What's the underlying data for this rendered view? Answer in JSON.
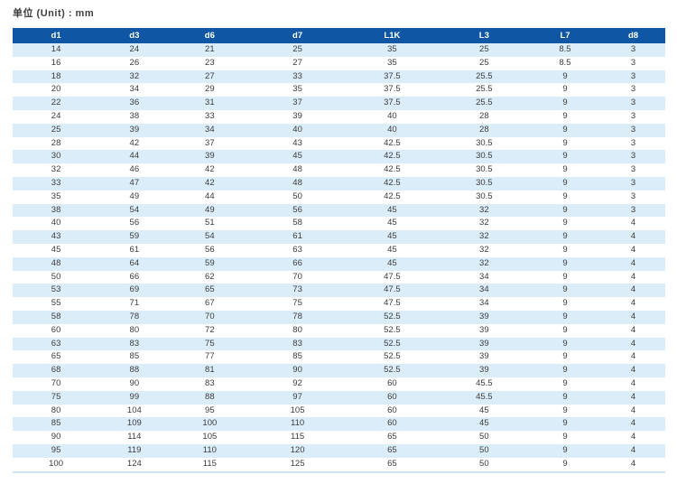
{
  "page": {
    "unit_label": "单位 (Unit) : mm"
  },
  "colors": {
    "header_bg": "#0f57a5",
    "header_text": "#ffffff",
    "row_alt_bg": "#dbedf9",
    "row_bg": "#ffffff",
    "body_text": "#3c3c3c",
    "table_bottom_line": "#cfe4f3"
  },
  "table": {
    "columns": [
      "d1",
      "d3",
      "d6",
      "d7",
      "L1K",
      "L3",
      "L7",
      "d8"
    ],
    "rows": [
      [
        14,
        24,
        21,
        25,
        35,
        25,
        8.5,
        3
      ],
      [
        16,
        26,
        23,
        27,
        35,
        25,
        8.5,
        3
      ],
      [
        18,
        32,
        27,
        33,
        37.5,
        25.5,
        9,
        3
      ],
      [
        20,
        34,
        29,
        35,
        37.5,
        25.5,
        9,
        3
      ],
      [
        22,
        36,
        31,
        37,
        37.5,
        25.5,
        9,
        3
      ],
      [
        24,
        38,
        33,
        39,
        40,
        28,
        9,
        3
      ],
      [
        25,
        39,
        34,
        40,
        40,
        28,
        9,
        3
      ],
      [
        28,
        42,
        37,
        43,
        42.5,
        30.5,
        9,
        3
      ],
      [
        30,
        44,
        39,
        45,
        42.5,
        30.5,
        9,
        3
      ],
      [
        32,
        46,
        42,
        48,
        42.5,
        30.5,
        9,
        3
      ],
      [
        33,
        47,
        42,
        48,
        42.5,
        30.5,
        9,
        3
      ],
      [
        35,
        49,
        44,
        50,
        42.5,
        30.5,
        9,
        3
      ],
      [
        38,
        54,
        49,
        56,
        45,
        32,
        9,
        3
      ],
      [
        40,
        56,
        51,
        58,
        45,
        32,
        9,
        4
      ],
      [
        43,
        59,
        54,
        61,
        45,
        32,
        9,
        4
      ],
      [
        45,
        61,
        56,
        63,
        45,
        32,
        9,
        4
      ],
      [
        48,
        64,
        59,
        66,
        45,
        32,
        9,
        4
      ],
      [
        50,
        66,
        62,
        70,
        47.5,
        34,
        9,
        4
      ],
      [
        53,
        69,
        65,
        73,
        47.5,
        34,
        9,
        4
      ],
      [
        55,
        71,
        67,
        75,
        47.5,
        34,
        9,
        4
      ],
      [
        58,
        78,
        70,
        78,
        52.5,
        39,
        9,
        4
      ],
      [
        60,
        80,
        72,
        80,
        52.5,
        39,
        9,
        4
      ],
      [
        63,
        83,
        75,
        83,
        52.5,
        39,
        9,
        4
      ],
      [
        65,
        85,
        77,
        85,
        52.5,
        39,
        9,
        4
      ],
      [
        68,
        88,
        81,
        90,
        52.5,
        39,
        9,
        4
      ],
      [
        70,
        90,
        83,
        92,
        60,
        45.5,
        9,
        4
      ],
      [
        75,
        99,
        88,
        97,
        60,
        45.5,
        9,
        4
      ],
      [
        80,
        104,
        95,
        105,
        60,
        45,
        9,
        4
      ],
      [
        85,
        109,
        100,
        110,
        60,
        45,
        9,
        4
      ],
      [
        90,
        114,
        105,
        115,
        65,
        50,
        9,
        4
      ],
      [
        95,
        119,
        110,
        120,
        65,
        50,
        9,
        4
      ],
      [
        100,
        124,
        115,
        125,
        65,
        50,
        9,
        4
      ]
    ]
  }
}
